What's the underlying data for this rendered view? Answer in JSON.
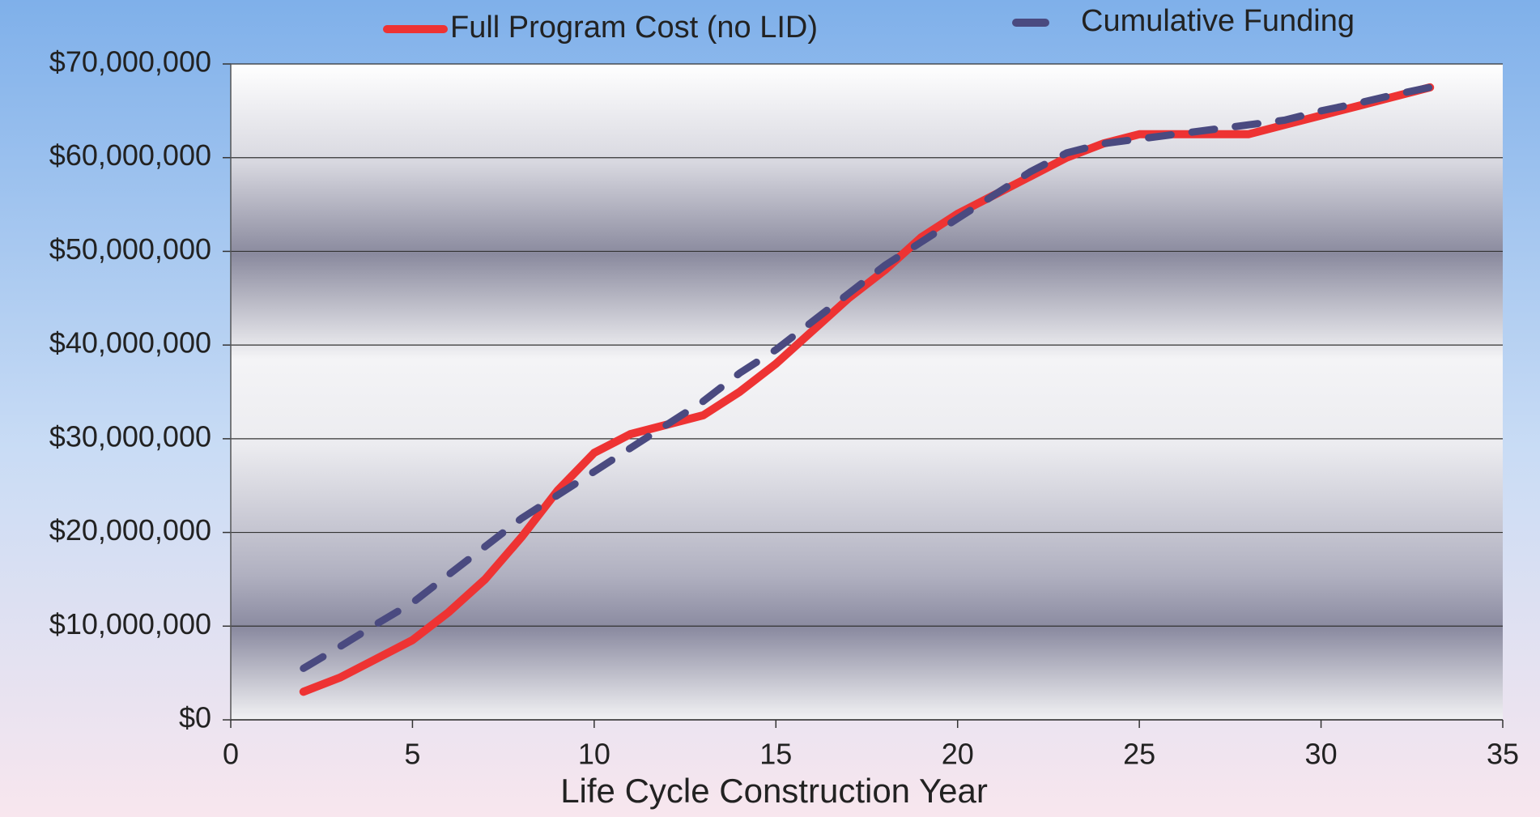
{
  "chart_data": {
    "type": "line",
    "x_label": "Life Cycle Construction Year",
    "x": [
      2,
      3,
      4,
      5,
      6,
      7,
      8,
      9,
      10,
      11,
      12,
      13,
      14,
      15,
      16,
      17,
      18,
      19,
      20,
      21,
      22,
      23,
      24,
      25,
      26,
      27,
      28,
      29,
      30,
      31,
      32,
      33
    ],
    "series": [
      {
        "name": "Full Program Cost (no LID)",
        "color": "#ee3333",
        "dash": false,
        "values": [
          3000000,
          4500000,
          6500000,
          8500000,
          11500000,
          15000000,
          19500000,
          24500000,
          28500000,
          30500000,
          31500000,
          32500000,
          35000000,
          38000000,
          41500000,
          45000000,
          48000000,
          51500000,
          54000000,
          56000000,
          58000000,
          60000000,
          61500000,
          62500000,
          62500000,
          62500000,
          62500000,
          63500000,
          64500000,
          65500000,
          66500000,
          67500000
        ]
      },
      {
        "name": "Cumulative Funding",
        "color": "#4a4a80",
        "dash": true,
        "values": [
          5500000,
          7800000,
          10200000,
          12500000,
          15500000,
          18500000,
          21500000,
          24000000,
          26500000,
          29000000,
          31500000,
          34000000,
          37000000,
          39500000,
          42500000,
          45500000,
          48500000,
          51000000,
          53500000,
          56000000,
          58500000,
          60500000,
          61500000,
          62000000,
          62500000,
          63000000,
          63500000,
          64000000,
          65000000,
          65800000,
          66700000,
          67500000
        ]
      }
    ],
    "xlim": [
      0,
      35
    ],
    "xticks": [
      0,
      5,
      10,
      15,
      20,
      25,
      30,
      35
    ],
    "ylim": [
      0,
      70000000
    ],
    "yticks": [
      {
        "value": 0,
        "label": "$0"
      },
      {
        "value": 10000000,
        "label": "$10,000,000"
      },
      {
        "value": 20000000,
        "label": "$20,000,000"
      },
      {
        "value": 30000000,
        "label": "$30,000,000"
      },
      {
        "value": 40000000,
        "label": "$40,000,000"
      },
      {
        "value": 50000000,
        "label": "$50,000,000"
      },
      {
        "value": 60000000,
        "label": "$60,000,000"
      },
      {
        "value": 70000000,
        "label": "$70,000,000"
      }
    ],
    "grid": true,
    "legend": "top"
  }
}
